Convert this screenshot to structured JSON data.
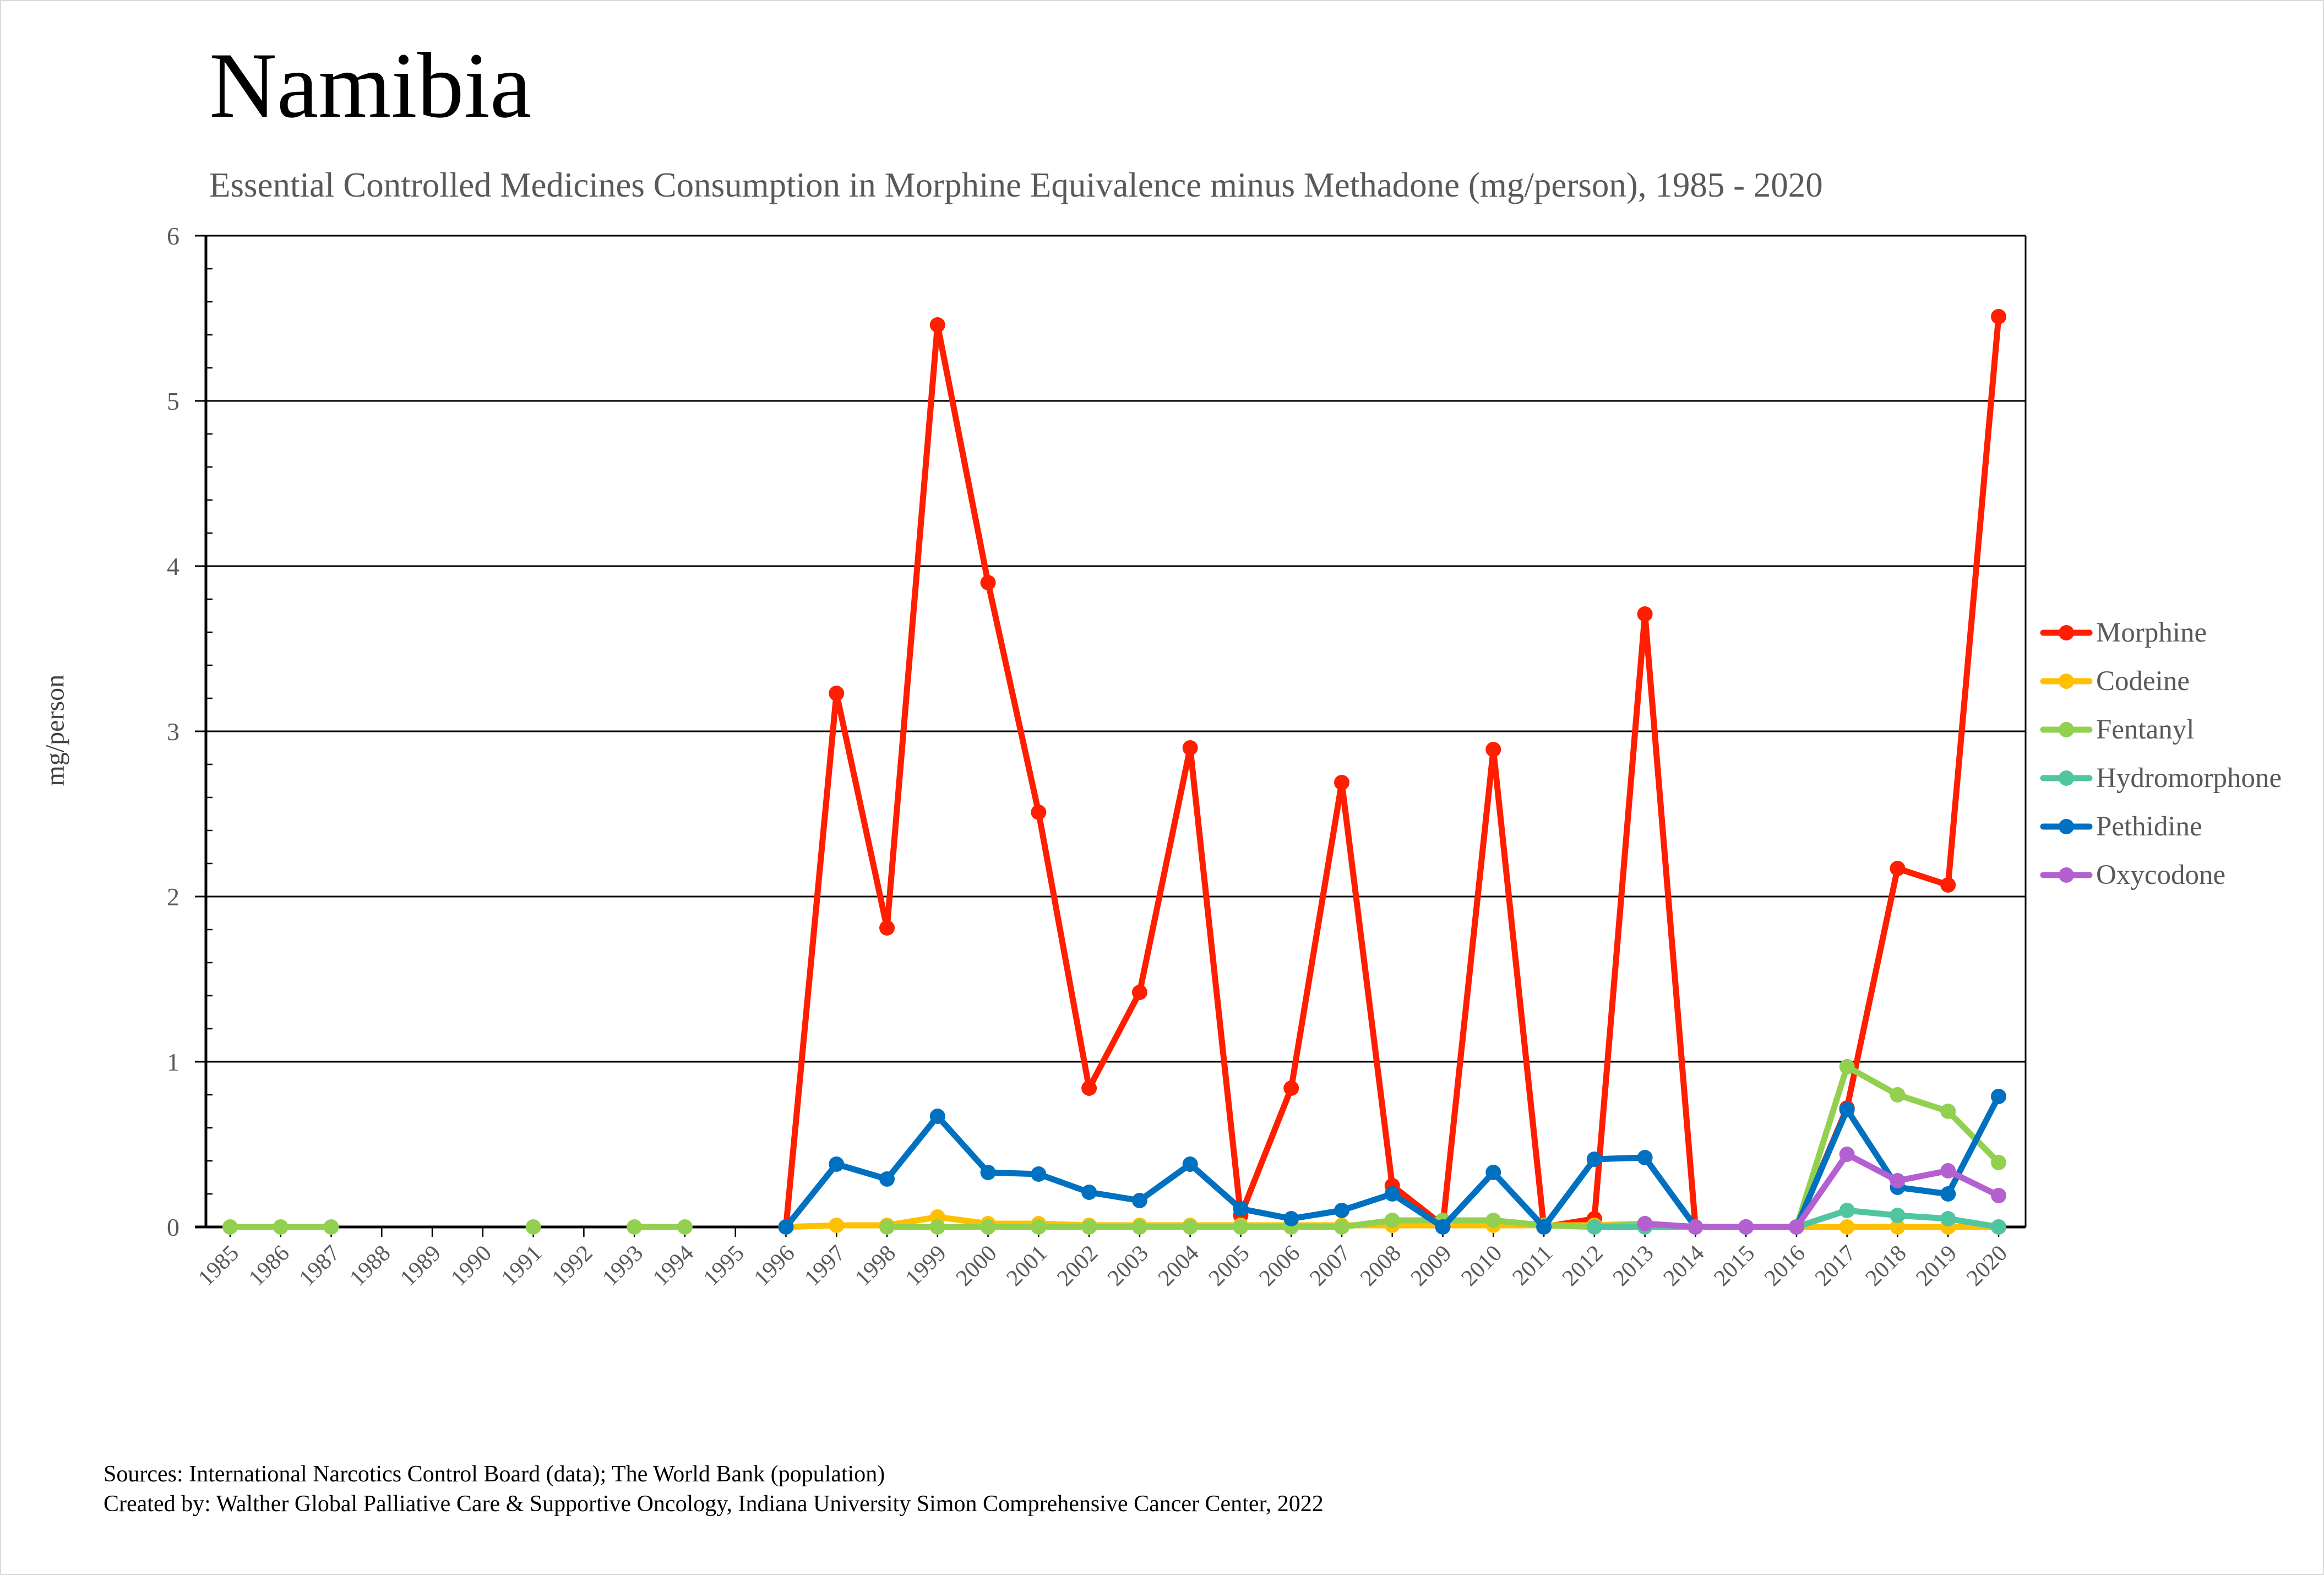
{
  "chart_data": {
    "type": "line",
    "title": "Namibia",
    "subtitle": "Essential Controlled Medicines Consumption in Morphine Equivalence minus Methadone (mg/person), 1985 - 2020",
    "xlabel": "",
    "ylabel": "mg/person",
    "ylim": [
      0,
      6
    ],
    "yticks": [
      "0",
      "1",
      "2",
      "3",
      "4",
      "5",
      "6"
    ],
    "grid": true,
    "legend_position": "right",
    "x": [
      "1985",
      "1986",
      "1987",
      "1988",
      "1989",
      "1990",
      "1991",
      "1992",
      "1993",
      "1994",
      "1995",
      "1996",
      "1997",
      "1998",
      "1999",
      "2000",
      "2001",
      "2002",
      "2003",
      "2004",
      "2005",
      "2006",
      "2007",
      "2008",
      "2009",
      "2010",
      "2011",
      "2012",
      "2013",
      "2014",
      "2015",
      "2016",
      "2017",
      "2018",
      "2019",
      "2020"
    ],
    "series": [
      {
        "name": "Morphine",
        "color": "#FF1F00",
        "values": [
          null,
          null,
          null,
          null,
          null,
          null,
          null,
          null,
          null,
          null,
          null,
          0,
          3.23,
          1.81,
          5.46,
          3.9,
          2.51,
          0.84,
          1.42,
          2.9,
          0.07,
          0.84,
          2.69,
          0.25,
          0.01,
          2.89,
          0,
          0.05,
          3.71,
          0,
          0,
          0,
          0.72,
          2.17,
          2.07,
          5.51
        ]
      },
      {
        "name": "Codeine",
        "color": "#FFC000",
        "values": [
          null,
          null,
          null,
          null,
          null,
          null,
          null,
          null,
          null,
          null,
          null,
          0,
          0.01,
          0.01,
          0.06,
          0.02,
          0.02,
          0.01,
          0.01,
          0.01,
          0.01,
          0.01,
          0.01,
          0.01,
          0.01,
          0.01,
          0.01,
          0.01,
          0.02,
          0,
          0,
          0,
          0,
          0,
          0,
          0
        ]
      },
      {
        "name": "Fentanyl",
        "color": "#92D050",
        "values": [
          0,
          0,
          0,
          null,
          null,
          null,
          0,
          null,
          0,
          0,
          null,
          null,
          null,
          0,
          0,
          0,
          0,
          0,
          0,
          0,
          0,
          0,
          0,
          0.04,
          0.04,
          0.04,
          0.01,
          0,
          0.02,
          0,
          0,
          0,
          0.97,
          0.8,
          0.7,
          0.39
        ]
      },
      {
        "name": "Hydromorphone",
        "color": "#50C5A0",
        "values": [
          null,
          null,
          null,
          null,
          null,
          null,
          null,
          null,
          null,
          null,
          null,
          null,
          null,
          null,
          null,
          null,
          null,
          null,
          null,
          null,
          null,
          null,
          null,
          null,
          null,
          null,
          null,
          0,
          0,
          0,
          0,
          0,
          0.1,
          0.07,
          0.05,
          0
        ]
      },
      {
        "name": "Pethidine",
        "color": "#0070C0",
        "values": [
          null,
          null,
          null,
          null,
          null,
          null,
          null,
          null,
          null,
          null,
          null,
          0,
          0.38,
          0.29,
          0.67,
          0.33,
          0.32,
          0.21,
          0.16,
          0.38,
          0.11,
          0.05,
          0.1,
          0.2,
          0,
          0.33,
          0,
          0.41,
          0.42,
          0,
          0,
          0,
          0.71,
          0.24,
          0.2,
          0.79
        ]
      },
      {
        "name": "Oxycodone",
        "color": "#B460D0",
        "values": [
          null,
          null,
          null,
          null,
          null,
          null,
          null,
          null,
          null,
          null,
          null,
          null,
          null,
          null,
          null,
          null,
          null,
          null,
          null,
          null,
          null,
          null,
          null,
          null,
          null,
          null,
          null,
          null,
          0.02,
          0,
          0,
          0,
          0.44,
          0.28,
          0.34,
          0.19
        ]
      }
    ]
  },
  "footer": {
    "sources": "Sources: International Narcotics Control Board (data); The World Bank (population)",
    "created_by": "Created by: Walther Global Palliative Care & Supportive Oncology, Indiana University Simon Comprehensive Cancer Center, 2022"
  }
}
